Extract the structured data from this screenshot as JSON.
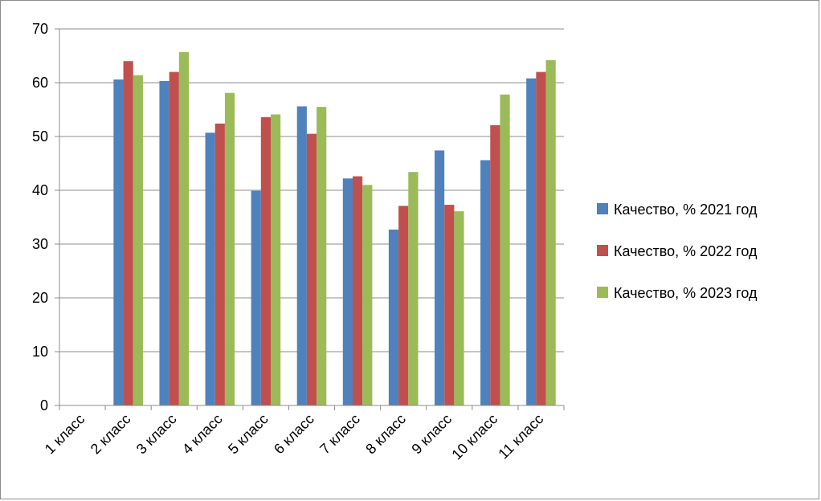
{
  "chart_data": {
    "type": "bar",
    "categories": [
      "1 класс",
      "2 класс",
      "3 класс",
      "4 класс",
      "5 класс",
      "6 класс",
      "7 класс",
      "8 класс",
      "9 класс",
      "10 класс",
      "11 класс"
    ],
    "series": [
      {
        "name": "Качество, % 2021 год",
        "color": "#4f81bd",
        "values": [
          null,
          60.6,
          60.3,
          50.7,
          39.9,
          55.6,
          42.2,
          32.7,
          47.4,
          45.6,
          60.8
        ]
      },
      {
        "name": "Качество, % 2022 год",
        "color": "#c0504d",
        "values": [
          null,
          64.0,
          62.0,
          52.4,
          53.6,
          50.5,
          42.6,
          37.1,
          37.3,
          52.1,
          62.0
        ]
      },
      {
        "name": "Качество, % 2023 год",
        "color": "#9bbb59",
        "values": [
          null,
          61.4,
          65.7,
          58.1,
          54.1,
          55.5,
          41.0,
          43.4,
          36.1,
          57.8,
          64.2
        ]
      }
    ],
    "ylim": [
      0,
      70
    ],
    "yticks": [
      0,
      10,
      20,
      30,
      40,
      50,
      60,
      70
    ],
    "title": "",
    "xlabel": "",
    "ylabel": "",
    "grid": true,
    "legend_position": "right"
  }
}
